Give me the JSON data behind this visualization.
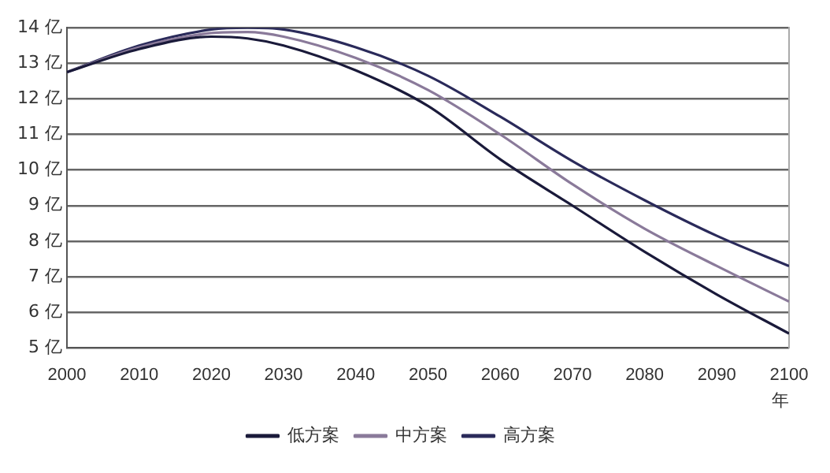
{
  "chart_data": {
    "type": "line",
    "xlabel": "年",
    "x": [
      2000,
      2010,
      2020,
      2025,
      2030,
      2040,
      2050,
      2060,
      2070,
      2080,
      2090,
      2100
    ],
    "series": [
      {
        "name": "低方案",
        "color": "#1a1a3a",
        "values": [
          12.75,
          13.4,
          13.75,
          13.7,
          13.5,
          12.8,
          11.8,
          10.3,
          9.0,
          7.7,
          6.5,
          5.4
        ]
      },
      {
        "name": "中方案",
        "color": "#8a7a9a",
        "values": [
          12.75,
          13.45,
          13.85,
          13.88,
          13.75,
          13.15,
          12.25,
          11.0,
          9.6,
          8.35,
          7.3,
          6.3
        ]
      },
      {
        "name": "高方案",
        "color": "#2a2a5a",
        "values": [
          12.75,
          13.5,
          13.95,
          14.0,
          13.95,
          13.45,
          12.65,
          11.5,
          10.25,
          9.15,
          8.15,
          7.3
        ]
      }
    ],
    "xlim": [
      2000,
      2100
    ],
    "xticks": [
      2000,
      2010,
      2020,
      2030,
      2040,
      2050,
      2060,
      2070,
      2080,
      2090,
      2100
    ],
    "ylim": [
      5,
      14
    ],
    "yticks": [
      {
        "value": 5,
        "label": "5 亿"
      },
      {
        "value": 6,
        "label": "6 亿"
      },
      {
        "value": 7,
        "label": "7 亿"
      },
      {
        "value": 8,
        "label": "8 亿"
      },
      {
        "value": 9,
        "label": "9 亿"
      },
      {
        "value": 10,
        "label": "10 亿"
      },
      {
        "value": 11,
        "label": "11 亿"
      },
      {
        "value": 12,
        "label": "12 亿"
      },
      {
        "value": 13,
        "label": "13 亿"
      },
      {
        "value": 14,
        "label": "14 亿"
      }
    ],
    "grid": "y",
    "legend": "bottom",
    "marker": "none",
    "line_style": "solid"
  }
}
